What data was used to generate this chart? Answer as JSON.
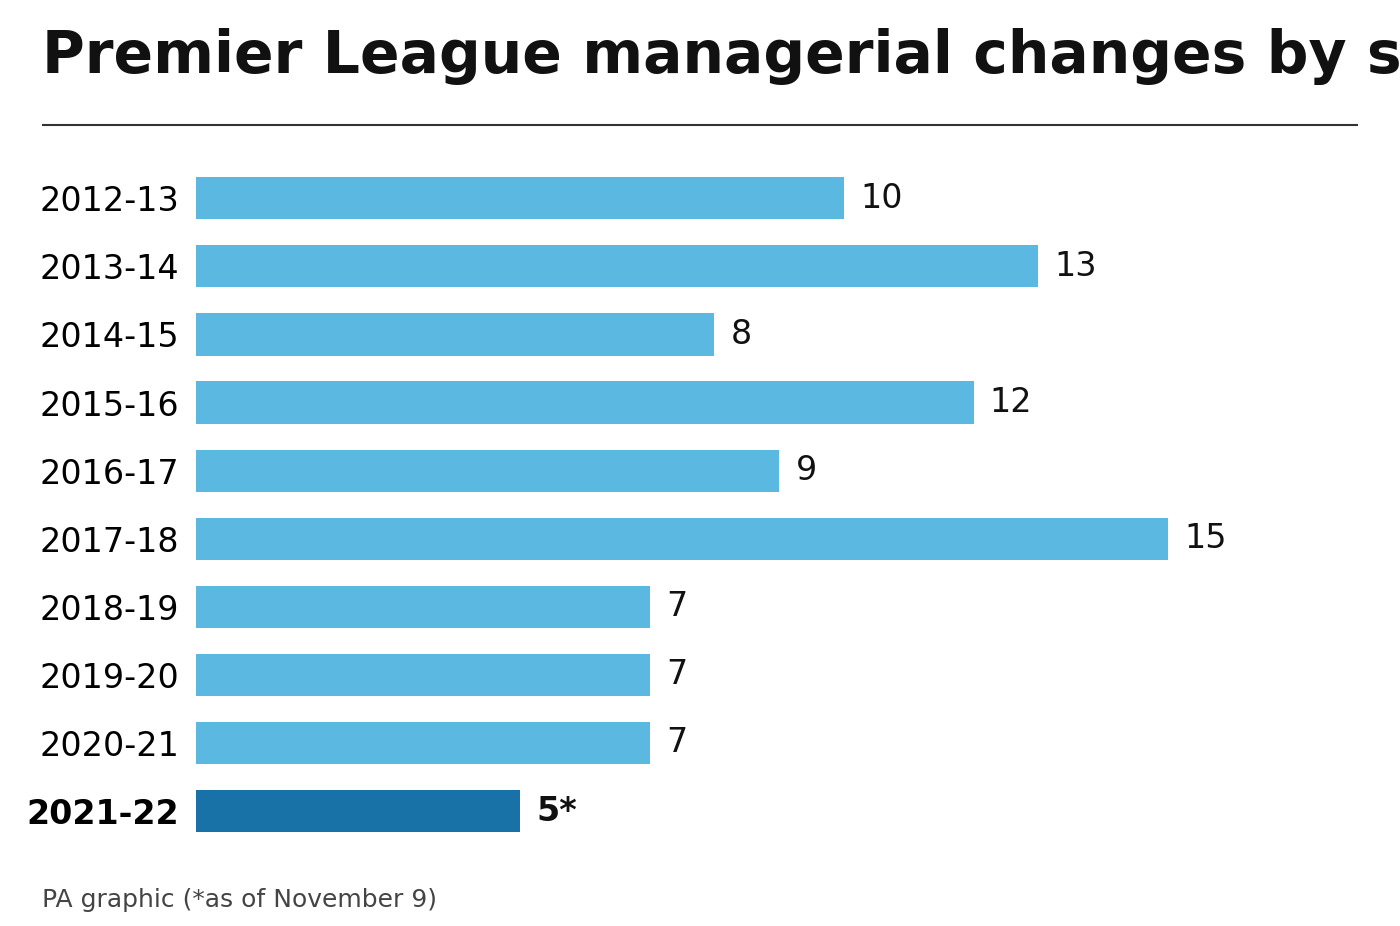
{
  "title": "Premier League managerial changes by season",
  "seasons": [
    "2012-13",
    "2013-14",
    "2014-15",
    "2015-16",
    "2016-17",
    "2017-18",
    "2018-19",
    "2019-20",
    "2020-21",
    "2021-22"
  ],
  "values": [
    10,
    13,
    8,
    12,
    9,
    15,
    7,
    7,
    7,
    5
  ],
  "bar_labels": [
    "10",
    "13",
    "8",
    "12",
    "9",
    "15",
    "7",
    "7",
    "7",
    "5*"
  ],
  "bar_colors": [
    "#5bb8e0",
    "#5bb8e0",
    "#5bb8e0",
    "#5bb8e0",
    "#5bb8e0",
    "#5bb8e0",
    "#5bb8e0",
    "#5bb8e0",
    "#5bb8e0",
    "#1872a8"
  ],
  "footnote": "PA graphic (*as of November 9)",
  "title_fontsize": 42,
  "label_fontsize": 24,
  "tick_fontsize": 24,
  "footnote_fontsize": 18,
  "background_color": "#ffffff",
  "bar_height": 0.62,
  "xlim": [
    0,
    17.5
  ]
}
